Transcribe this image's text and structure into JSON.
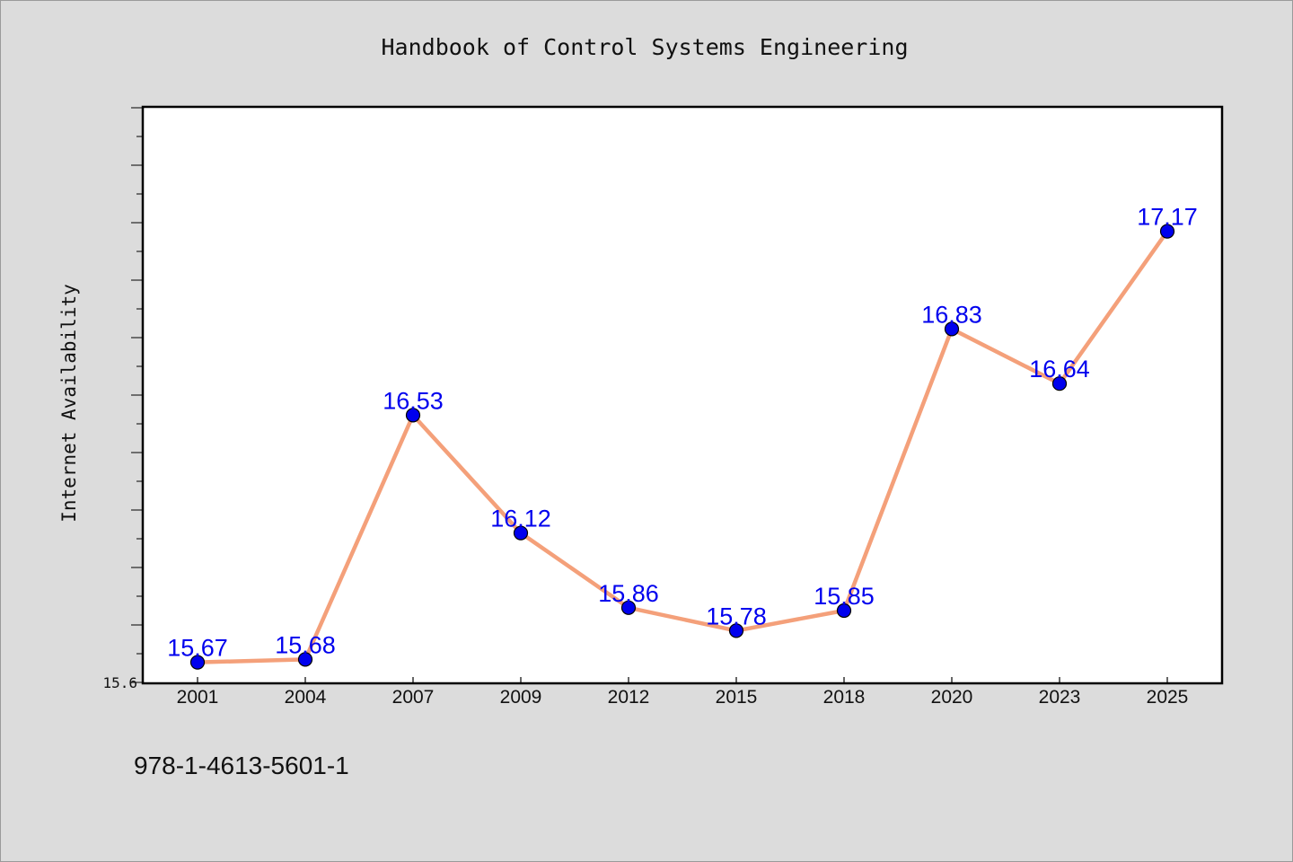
{
  "chart_data": {
    "type": "line",
    "title": "Handbook of Control Systems Engineering",
    "ylabel": "Internet Availability",
    "xlabel": "",
    "categories": [
      "2001",
      "2004",
      "2007",
      "2009",
      "2012",
      "2015",
      "2018",
      "2020",
      "2023",
      "2025"
    ],
    "series": [
      {
        "values": [
          15.67,
          15.68,
          16.53,
          16.12,
          15.86,
          15.78,
          15.85,
          16.83,
          16.64,
          17.17
        ],
        "labels": [
          "15.67",
          "15.68",
          "16.53",
          "16.12",
          "15.86",
          "15.78",
          "15.85",
          "16.83",
          "16.64",
          "17.17"
        ]
      }
    ],
    "ylim": [
      15.6,
      17.6
    ],
    "ytick_label": "15.6",
    "grid": false,
    "colors": {
      "line": "#f4a07a",
      "marker": "#0000ee",
      "label": "#0000ee"
    }
  },
  "footer": {
    "isbn": "978-1-4613-5601-1"
  }
}
